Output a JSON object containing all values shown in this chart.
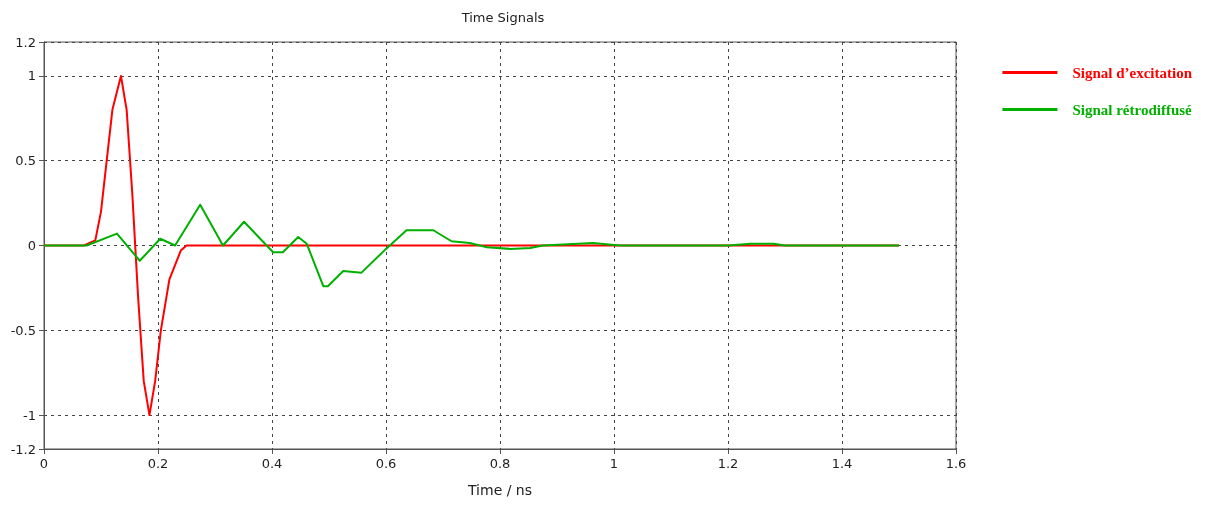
{
  "chart_data": {
    "type": "line",
    "title": "Time Signals",
    "xlabel": "Time / ns",
    "xlim": [
      0,
      1.6
    ],
    "xticks": [
      0,
      0.2,
      0.4,
      0.6,
      0.8,
      1,
      1.2,
      1.4,
      1.6
    ],
    "ylim": [
      -1.2,
      1.2
    ],
    "yticks": [
      -1.2,
      -1,
      -0.5,
      0,
      0.5,
      1,
      1.2
    ],
    "grid": true,
    "legend": "right",
    "marker": "none",
    "line_style": "solid",
    "series": [
      {
        "name": "Signal d’excitation",
        "color": "#ff0000",
        "x": [
          0,
          0.07,
          0.09,
          0.1,
          0.11,
          0.12,
          0.135,
          0.145,
          0.155,
          0.165,
          0.175,
          0.185,
          0.195,
          0.205,
          0.22,
          0.24,
          0.25,
          1.5
        ],
        "values": [
          0,
          0,
          0.03,
          0.2,
          0.5,
          0.8,
          1.0,
          0.8,
          0.3,
          -0.3,
          -0.8,
          -1.0,
          -0.8,
          -0.5,
          -0.2,
          -0.03,
          0,
          0
        ]
      },
      {
        "name": "Signal rétrodiffusé",
        "color": "#00b000",
        "x": [
          0,
          0.075,
          0.128,
          0.168,
          0.204,
          0.23,
          0.274,
          0.314,
          0.351,
          0.402,
          0.419,
          0.446,
          0.461,
          0.49,
          0.498,
          0.525,
          0.557,
          0.6,
          0.636,
          0.683,
          0.715,
          0.747,
          0.777,
          0.818,
          0.853,
          0.875,
          0.963,
          1.01,
          1.2,
          1.24,
          1.28,
          1.3,
          1.5
        ],
        "values": [
          0,
          0,
          0.07,
          -0.09,
          0.04,
          0,
          0.24,
          0,
          0.14,
          -0.04,
          -0.04,
          0.05,
          0.01,
          -0.24,
          -0.24,
          -0.15,
          -0.16,
          -0.02,
          0.09,
          0.09,
          0.025,
          0.015,
          -0.01,
          -0.02,
          -0.015,
          0,
          0.015,
          0,
          0,
          0.01,
          0.01,
          0,
          0
        ]
      }
    ]
  }
}
